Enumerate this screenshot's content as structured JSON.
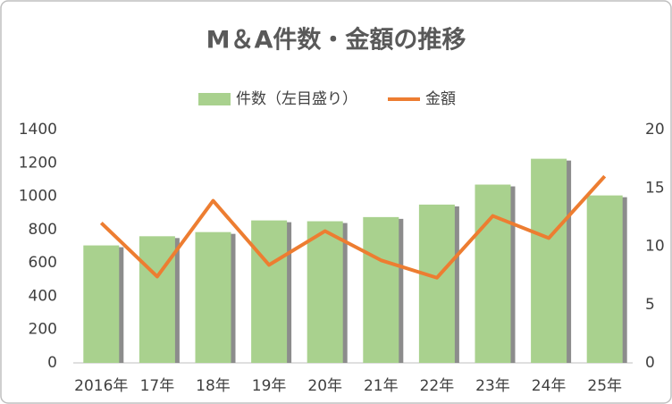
{
  "chart_data": {
    "type": "bar-line",
    "title": "M＆A件数・金額の推移",
    "categories": [
      "2016年",
      "17年",
      "18年",
      "19年",
      "20年",
      "21年",
      "22年",
      "23年",
      "24年",
      "25年"
    ],
    "series": [
      {
        "name": "件数（左目盛り）",
        "type": "bar",
        "color": "#a9d18e",
        "values": [
          705,
          760,
          785,
          855,
          850,
          875,
          950,
          1070,
          1225,
          1005
        ]
      },
      {
        "name": "金額",
        "type": "line",
        "color": "#ed7d31",
        "axis": "y2",
        "values": [
          12.0,
          7.4,
          13.9,
          8.4,
          11.3,
          8.8,
          7.3,
          12.6,
          10.7,
          16.0
        ]
      }
    ],
    "ylim": [
      0,
      1400
    ],
    "yticks": [
      0,
      200,
      400,
      600,
      800,
      1000,
      1200,
      1400
    ],
    "y2lim": [
      0,
      20
    ],
    "y2ticks": [
      0,
      5,
      10,
      15,
      20
    ],
    "grid": false,
    "legend": "top"
  }
}
